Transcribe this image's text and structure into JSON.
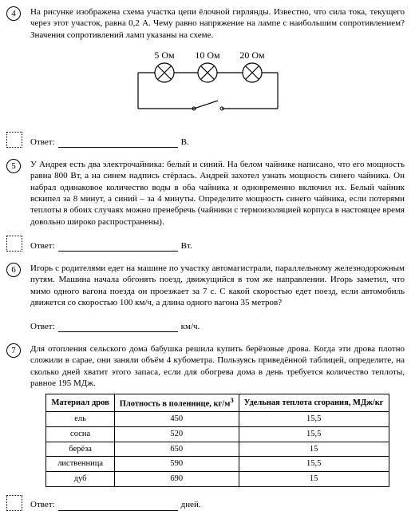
{
  "q4": {
    "num": "4",
    "text": "На рисунке изображена схема участка цепи ёлочной гирлянды. Известно, что сила тока, текущего через этот участок, равна 0,2 А. Чему равно напряжение на лампе с наибольшим сопротивлением? Значения сопротивлений ламп указаны на схеме.",
    "labels": [
      "5 Ом",
      "10 Ом",
      "20 Ом"
    ],
    "answer_label": "Ответ:",
    "unit": "В."
  },
  "q5": {
    "num": "5",
    "text": "У Андрея есть два электрочайника: белый и синий. На белом чайнике написано, что его мощность равна 800 Вт, а на синем надпись стёрлась. Андрей захотел узнать мощность синего чайника. Он набрал одинаковое количество воды в оба чайника и одновременно включил их. Белый чайник вскипел за 8 минут, а синий – за 4 минуты. Определите мощность синего чайника, если потерями теплоты в обоих случаях можно пренебречь (чайники с термоизоляцией корпуса в настоящее время довольно широко распространены).",
    "answer_label": "Ответ:",
    "unit": "Вт."
  },
  "q6": {
    "num": "6",
    "text": "Игорь с родителями едет на машине по участку автомагистрали, параллельному железнодорожным путям. Машина начала обгонять поезд, движущийся в том же направлении. Игорь заметил, что мимо одного вагона поезда он проезжает за 7 с. С какой скоростью едет поезд, если автомобиль движется со скоростью 100 км/ч, а длина одного вагона 35 метров?",
    "answer_label": "Ответ:",
    "unit": "км/ч."
  },
  "q7": {
    "num": "7",
    "text": "Для отопления сельского дома бабушка решила купить берёзовые дрова. Когда эти дрова плотно сложили в сарае, они заняли объём 4 кубометра. Пользуясь приведённой таблицей, определите, на сколько дней хватит этого запаса, если для обогрева дома в день требуется количество теплоты, равное 195 МДж.",
    "table": {
      "headers": [
        "Материал дров",
        "Плотность в поленнице, кг/м",
        "Удельная теплота сгорания, МДж/кг"
      ],
      "sup3": "3",
      "rows": [
        [
          "ель",
          "450",
          "15,5"
        ],
        [
          "сосна",
          "520",
          "15,5"
        ],
        [
          "берёза",
          "650",
          "15"
        ],
        [
          "лиственница",
          "590",
          "15,5"
        ],
        [
          "дуб",
          "690",
          "15"
        ]
      ]
    },
    "answer_label": "Ответ:",
    "unit": "дней."
  }
}
